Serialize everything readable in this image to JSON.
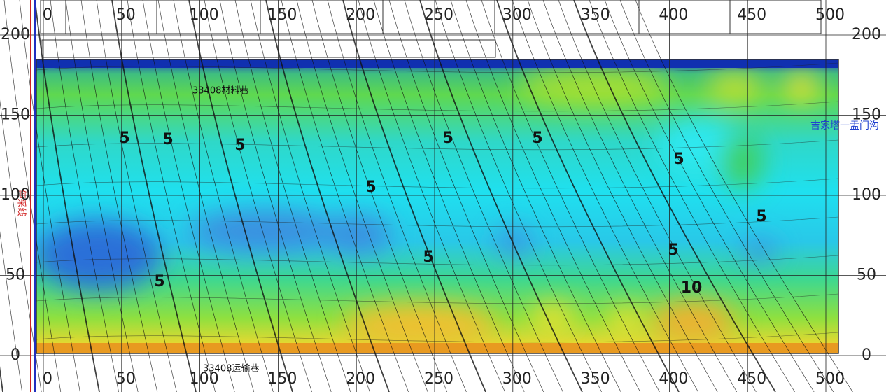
{
  "x_axis": {
    "ticks": [
      0,
      50,
      100,
      150,
      200,
      250,
      300,
      350,
      400,
      450,
      500
    ]
  },
  "y_axis": {
    "ticks": [
      0,
      50,
      100,
      150,
      200
    ]
  },
  "roadways": {
    "top": "33408材料巷",
    "bottom": "33408运输巷"
  },
  "stop_line": "停采线",
  "boundary": "吉家塔一盂门沟",
  "contour_labels": [
    "5",
    "5",
    "5",
    "5",
    "5",
    "5",
    "5",
    "5",
    "5",
    "5",
    "5",
    "10"
  ]
}
